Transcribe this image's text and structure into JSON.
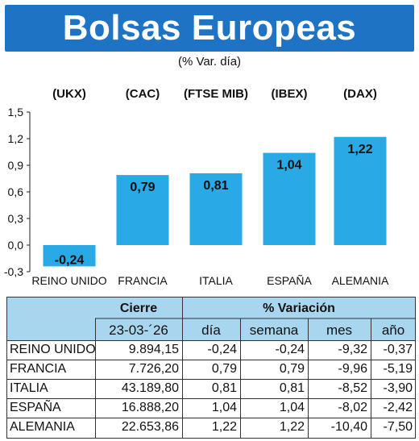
{
  "header": {
    "title": "Bolsas Europeas",
    "subtitle": "(% Var. día)"
  },
  "colors": {
    "header_bg": "#1f73c4",
    "bar": "#29a9e6",
    "table_header_bg": "#a9d6ef"
  },
  "chart_data": {
    "type": "bar",
    "title": "Bolsas Europeas",
    "subtitle": "(% Var. día)",
    "index_labels": [
      "(UKX)",
      "(CAC)",
      "(FTSE MIB)",
      "(IBEX)",
      "(DAX)"
    ],
    "categories": [
      "REINO UNIDO",
      "FRANCIA",
      "ITALIA",
      "ESPAÑA",
      "ALEMANIA"
    ],
    "values": [
      -0.24,
      0.79,
      0.81,
      1.04,
      1.22
    ],
    "value_labels": [
      "-0,24",
      "0,79",
      "0,81",
      "1,04",
      "1,22"
    ],
    "yticks": [
      "-0,3",
      "0,0",
      "0,3",
      "0,6",
      "0,9",
      "1,2",
      "1,5"
    ],
    "ytick_values": [
      -0.3,
      0.0,
      0.3,
      0.6,
      0.9,
      1.2,
      1.5
    ],
    "ylim": [
      -0.3,
      1.5
    ],
    "grid": false
  },
  "table": {
    "group_headers": {
      "cierre": "Cierre",
      "variacion": "% Variación"
    },
    "columns": {
      "date": "23-03-´26",
      "dia": "día",
      "semana": "semana",
      "mes": "mes",
      "ano": "año"
    },
    "rows": [
      {
        "country": "REINO UNIDO",
        "close": "9.894,15",
        "dia": "-0,24",
        "semana": "-0,24",
        "mes": "-9,32",
        "ano": "-0,37"
      },
      {
        "country": "FRANCIA",
        "close": "7.726,20",
        "dia": "0,79",
        "semana": "0,79",
        "mes": "-9,96",
        "ano": "-5,19"
      },
      {
        "country": "ITALIA",
        "close": "43.189,80",
        "dia": "0,81",
        "semana": "0,81",
        "mes": "-8,52",
        "ano": "-3,90"
      },
      {
        "country": "ESPAÑA",
        "close": "16.888,20",
        "dia": "1,04",
        "semana": "1,04",
        "mes": "-8,02",
        "ano": "-2,42"
      },
      {
        "country": "ALEMANIA",
        "close": "22.653,86",
        "dia": "1,22",
        "semana": "1,22",
        "mes": "-10,40",
        "ano": "-7,50"
      }
    ]
  }
}
